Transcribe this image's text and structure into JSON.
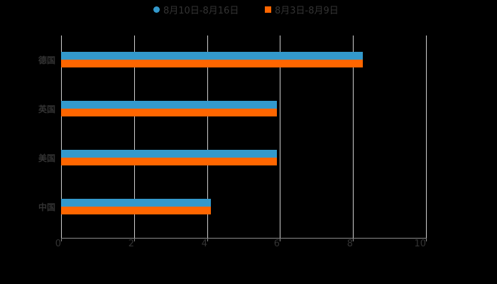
{
  "chart_data": {
    "type": "bar",
    "orientation": "horizontal",
    "title": "",
    "xlabel": "",
    "ylabel": "",
    "categories": [
      "德国",
      "英国",
      "美国",
      "中国"
    ],
    "series": [
      {
        "name": "8月10日-8月16日",
        "color": "#3399cc",
        "values": [
          8.27,
          5.92,
          5.92,
          4.1
        ]
      },
      {
        "name": "8月3日-8月9日",
        "color": "#ff6600",
        "values": [
          8.27,
          5.92,
          5.92,
          4.1
        ]
      }
    ],
    "xlim": [
      0,
      10
    ],
    "xticks": [
      "0",
      "2",
      "4",
      "6",
      "8",
      "10"
    ],
    "grid": true,
    "legend_position": "top"
  },
  "legend": [
    {
      "label": "8月10日-8月16日",
      "marker": "circle",
      "color": "#3399cc"
    },
    {
      "label": "8月3日-8月9日",
      "marker": "square",
      "color": "#ff6600"
    }
  ]
}
